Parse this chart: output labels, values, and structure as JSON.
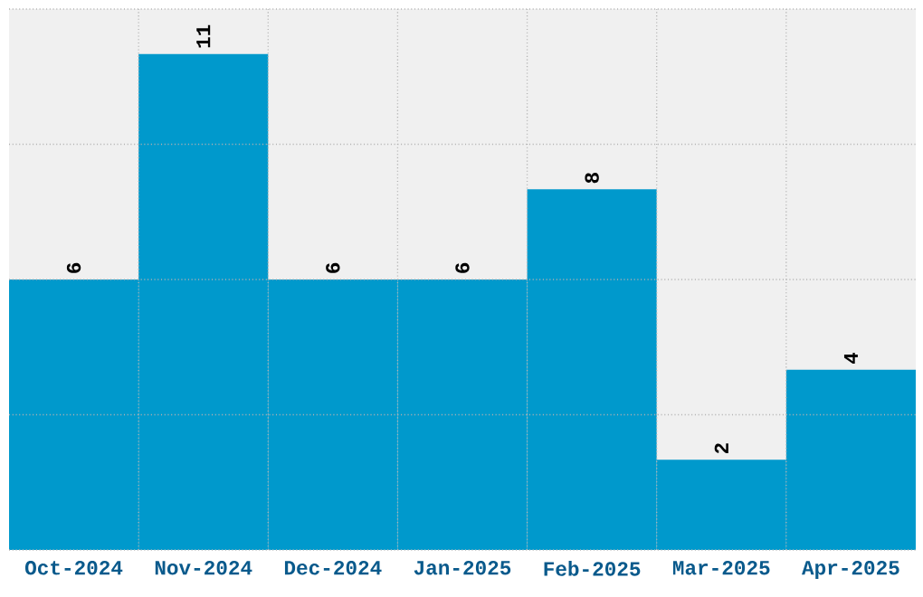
{
  "chart_data": {
    "type": "bar",
    "categories": [
      "Oct-2024",
      "Nov-2024",
      "Dec-2024",
      "Jan-2025",
      "Feb-2025",
      "Mar-2025",
      "Apr-2025"
    ],
    "values": [
      6,
      11,
      6,
      6,
      8,
      2,
      4
    ],
    "color": "#0099cc",
    "ylim": [
      0,
      12
    ],
    "yticks": [
      {
        "value": 0,
        "label": null
      },
      {
        "value": 3,
        "label": null
      },
      {
        "value": 6,
        "label": null
      },
      {
        "value": 9,
        "label": null
      },
      {
        "value": 12,
        "label": null
      }
    ],
    "tick_labels": "x",
    "grid": true,
    "data_labels": true
  }
}
